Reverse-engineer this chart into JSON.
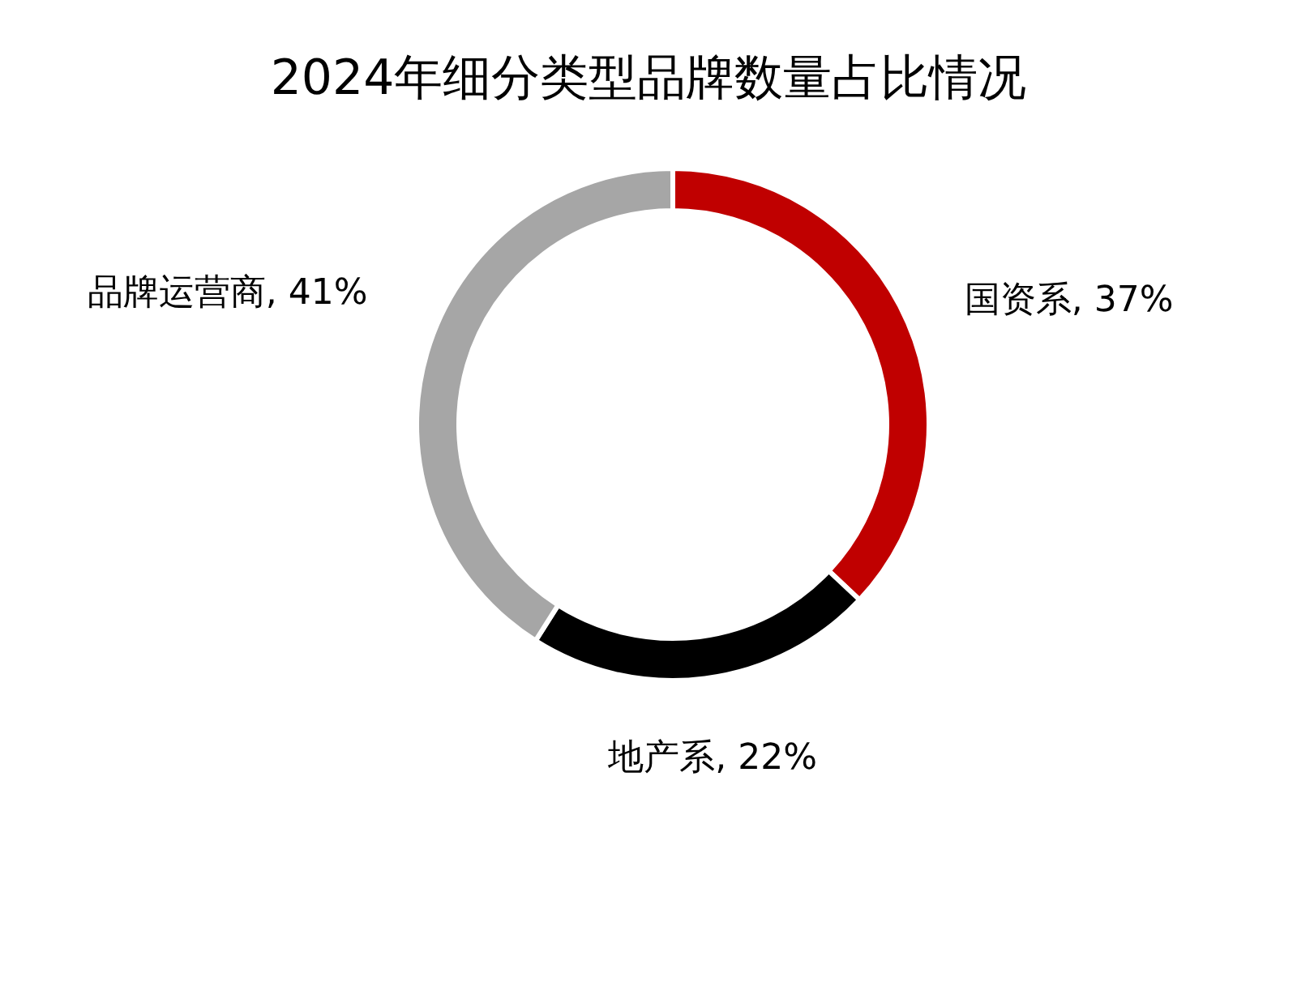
{
  "chart_data": {
    "type": "donut",
    "title": "2024年细分类型品牌数量占比情况",
    "categories": [
      "国资系",
      "地产系",
      "品牌运营商"
    ],
    "values": [
      37,
      22,
      41
    ],
    "value_labels": [
      "37%",
      "22%",
      "41%"
    ],
    "colors": [
      "#c00000",
      "#000000",
      "#a6a6a6"
    ]
  }
}
